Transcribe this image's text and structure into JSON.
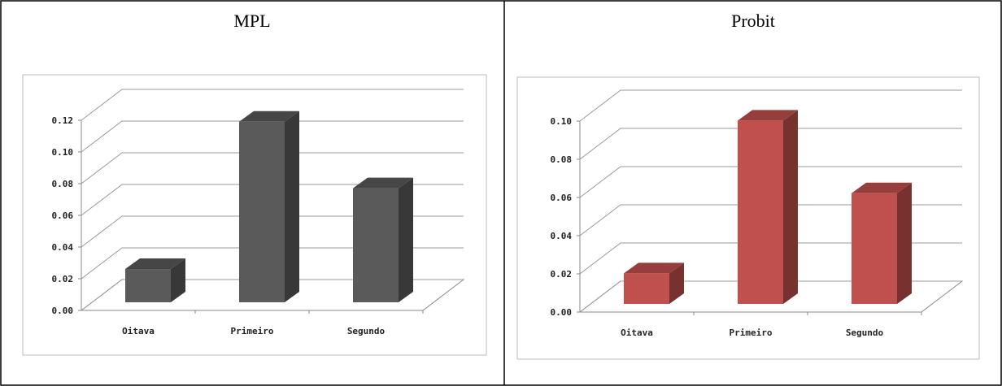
{
  "chart_data": [
    {
      "type": "bar3d",
      "title": "MPL",
      "categories": [
        "Oitava",
        "Primeiro",
        "Segundo"
      ],
      "series": [
        {
          "color": "#5a5a5a",
          "values": [
            0.021,
            0.114,
            0.072
          ]
        }
      ],
      "ylim": [
        0,
        0.12
      ],
      "yticks": [
        {
          "value": 0,
          "label": "0.00"
        },
        0.02,
        0.04,
        0.06,
        0.08,
        {
          "value": 0.1,
          "label": "0.10"
        },
        0.12
      ],
      "grid": true
    },
    {
      "type": "bar3d",
      "title": "Probit",
      "categories": [
        "Oitava",
        "Primeiro",
        "Segundo"
      ],
      "series": [
        {
          "color": "#c0504d",
          "values": [
            0.016,
            0.096,
            0.058
          ]
        }
      ],
      "ylim": [
        0,
        0.1
      ],
      "yticks": [
        {
          "value": 0,
          "label": "0.00"
        },
        0.02,
        0.04,
        0.06,
        0.08,
        {
          "value": 0.1,
          "label": "0.10"
        }
      ],
      "grid": true
    }
  ]
}
